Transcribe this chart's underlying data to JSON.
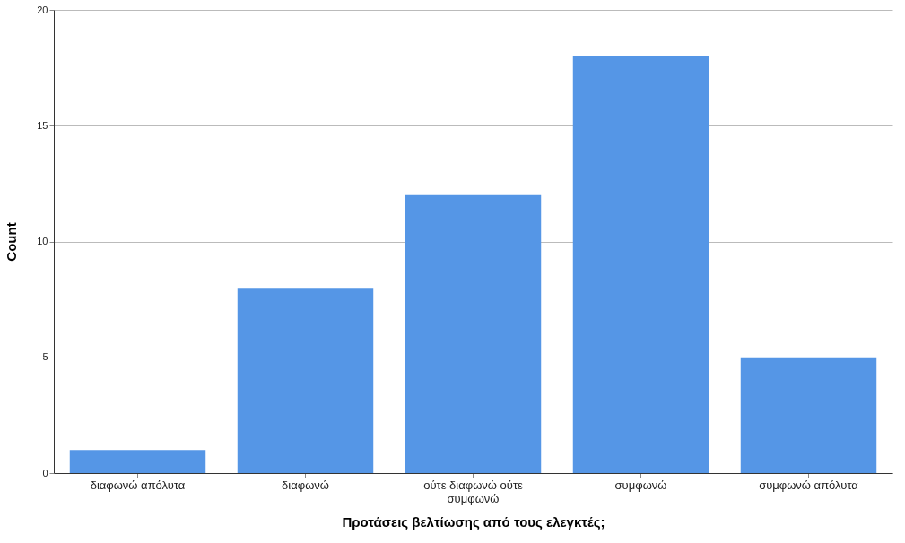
{
  "chart_data": {
    "type": "bar",
    "xlabel": "Προτάσεις βελτίωσης από τους ελεγκτές;",
    "ylabel": "Count",
    "categories": [
      "διαφωνώ απόλυτα",
      "διαφωνώ",
      "ούτε διαφωνώ ούτε συμφωνώ",
      "συμφωνώ",
      "συμφωνώ απόλυτα"
    ],
    "values": [
      1,
      8,
      12,
      18,
      5
    ],
    "color": "#5596e6",
    "ylim": [
      0,
      20
    ],
    "yticks": [
      0,
      5,
      10,
      15,
      20
    ],
    "grid": "y"
  }
}
